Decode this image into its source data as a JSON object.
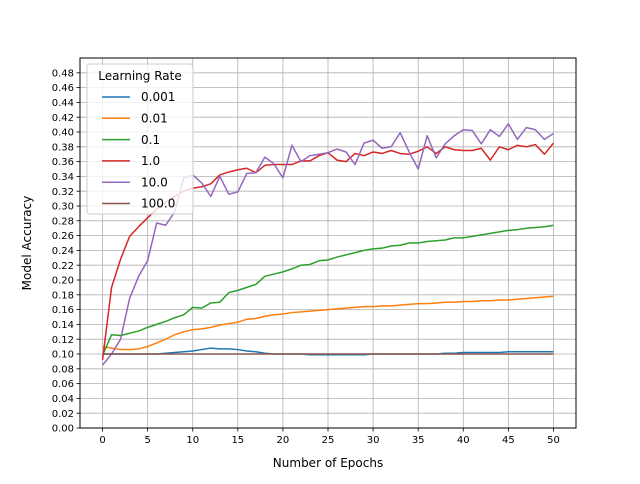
{
  "chart_data": {
    "type": "line",
    "title": "",
    "xlabel": "Number of Epochs",
    "ylabel": "Model Accuracy",
    "xlim": [
      -2.5,
      52.5
    ],
    "ylim": [
      0.0,
      0.5
    ],
    "grid": true,
    "xticks": [
      0,
      5,
      10,
      15,
      20,
      25,
      30,
      35,
      40,
      45,
      50
    ],
    "yticks": [
      0.0,
      0.02,
      0.04,
      0.06,
      0.08,
      0.1,
      0.12,
      0.14,
      0.16,
      0.18,
      0.2,
      0.22,
      0.24,
      0.26,
      0.28,
      0.3,
      0.32,
      0.34,
      0.36,
      0.38,
      0.4,
      0.42,
      0.44,
      0.46,
      0.48
    ],
    "xtick_labels": [
      "0",
      "5",
      "10",
      "15",
      "20",
      "25",
      "30",
      "35",
      "40",
      "45",
      "50"
    ],
    "ytick_labels": [
      "0.00",
      "0.02",
      "0.04",
      "0.06",
      "0.08",
      "0.10",
      "0.12",
      "0.14",
      "0.16",
      "0.18",
      "0.20",
      "0.22",
      "0.24",
      "0.26",
      "0.28",
      "0.30",
      "0.32",
      "0.34",
      "0.36",
      "0.38",
      "0.40",
      "0.42",
      "0.44",
      "0.46",
      "0.48"
    ],
    "legend": {
      "title": "Learning Rate",
      "placement": "upper-left"
    },
    "x": [
      0,
      1,
      2,
      3,
      4,
      5,
      6,
      7,
      8,
      9,
      10,
      11,
      12,
      13,
      14,
      15,
      16,
      17,
      18,
      19,
      20,
      21,
      22,
      23,
      24,
      25,
      26,
      27,
      28,
      29,
      30,
      31,
      32,
      33,
      34,
      35,
      36,
      37,
      38,
      39,
      40,
      41,
      42,
      43,
      44,
      45,
      46,
      47,
      48,
      49,
      50
    ],
    "series": [
      {
        "name": "0.001",
        "color": "#1f77b4",
        "values": [
          0.1,
          0.1,
          0.1,
          0.1,
          0.1,
          0.1,
          0.1,
          0.101,
          0.102,
          0.103,
          0.104,
          0.106,
          0.108,
          0.107,
          0.107,
          0.106,
          0.104,
          0.103,
          0.101,
          0.1,
          0.1,
          0.1,
          0.1,
          0.099,
          0.099,
          0.099,
          0.099,
          0.099,
          0.099,
          0.099,
          0.1,
          0.1,
          0.1,
          0.1,
          0.1,
          0.1,
          0.1,
          0.1,
          0.101,
          0.101,
          0.102,
          0.102,
          0.102,
          0.102,
          0.102,
          0.103,
          0.103,
          0.103,
          0.103,
          0.103,
          0.103
        ]
      },
      {
        "name": "0.01",
        "color": "#ff7f0e",
        "values": [
          0.11,
          0.108,
          0.106,
          0.106,
          0.107,
          0.11,
          0.115,
          0.12,
          0.126,
          0.13,
          0.133,
          0.134,
          0.136,
          0.139,
          0.141,
          0.143,
          0.147,
          0.148,
          0.151,
          0.153,
          0.154,
          0.156,
          0.157,
          0.158,
          0.159,
          0.16,
          0.161,
          0.162,
          0.163,
          0.164,
          0.164,
          0.165,
          0.165,
          0.166,
          0.167,
          0.168,
          0.168,
          0.169,
          0.17,
          0.17,
          0.171,
          0.171,
          0.172,
          0.172,
          0.173,
          0.173,
          0.174,
          0.175,
          0.176,
          0.177,
          0.178
        ]
      },
      {
        "name": "0.1",
        "color": "#2ca02c",
        "values": [
          0.098,
          0.126,
          0.125,
          0.128,
          0.131,
          0.136,
          0.14,
          0.144,
          0.149,
          0.153,
          0.163,
          0.162,
          0.169,
          0.17,
          0.183,
          0.186,
          0.19,
          0.194,
          0.205,
          0.208,
          0.211,
          0.215,
          0.22,
          0.221,
          0.226,
          0.227,
          0.231,
          0.234,
          0.237,
          0.24,
          0.242,
          0.243,
          0.246,
          0.247,
          0.25,
          0.25,
          0.252,
          0.253,
          0.254,
          0.257,
          0.257,
          0.259,
          0.261,
          0.263,
          0.265,
          0.267,
          0.268,
          0.27,
          0.271,
          0.272,
          0.274
        ]
      },
      {
        "name": "1.0",
        "color": "#d62728",
        "values": [
          0.092,
          0.19,
          0.228,
          0.259,
          0.272,
          0.284,
          0.296,
          0.305,
          0.313,
          0.32,
          0.324,
          0.326,
          0.33,
          0.342,
          0.346,
          0.349,
          0.351,
          0.345,
          0.355,
          0.356,
          0.356,
          0.356,
          0.361,
          0.361,
          0.368,
          0.372,
          0.362,
          0.36,
          0.371,
          0.368,
          0.373,
          0.371,
          0.375,
          0.371,
          0.37,
          0.374,
          0.38,
          0.371,
          0.38,
          0.376,
          0.375,
          0.375,
          0.378,
          0.362,
          0.38,
          0.376,
          0.382,
          0.38,
          0.383,
          0.37,
          0.385
        ]
      },
      {
        "name": "10.0",
        "color": "#9467bd",
        "values": [
          0.085,
          0.1,
          0.12,
          0.175,
          0.205,
          0.226,
          0.277,
          0.274,
          0.292,
          0.338,
          0.342,
          0.331,
          0.313,
          0.34,
          0.316,
          0.319,
          0.344,
          0.345,
          0.366,
          0.357,
          0.338,
          0.382,
          0.36,
          0.368,
          0.37,
          0.372,
          0.377,
          0.373,
          0.356,
          0.385,
          0.389,
          0.378,
          0.38,
          0.399,
          0.373,
          0.35,
          0.395,
          0.365,
          0.384,
          0.395,
          0.403,
          0.402,
          0.384,
          0.403,
          0.394,
          0.411,
          0.39,
          0.406,
          0.403,
          0.39,
          0.398
        ]
      },
      {
        "name": "100.0",
        "color": "#8c564b",
        "values": [
          0.1,
          0.1,
          0.1,
          0.1,
          0.1,
          0.1,
          0.1,
          0.1,
          0.1,
          0.1,
          0.1,
          0.1,
          0.1,
          0.1,
          0.1,
          0.1,
          0.1,
          0.1,
          0.1,
          0.1,
          0.1,
          0.1,
          0.1,
          0.1,
          0.1,
          0.1,
          0.1,
          0.1,
          0.1,
          0.1,
          0.1,
          0.1,
          0.1,
          0.1,
          0.1,
          0.1,
          0.1,
          0.1,
          0.1,
          0.1,
          0.1,
          0.1,
          0.1,
          0.1,
          0.1,
          0.1,
          0.1,
          0.1,
          0.1,
          0.1,
          0.1
        ]
      }
    ]
  }
}
